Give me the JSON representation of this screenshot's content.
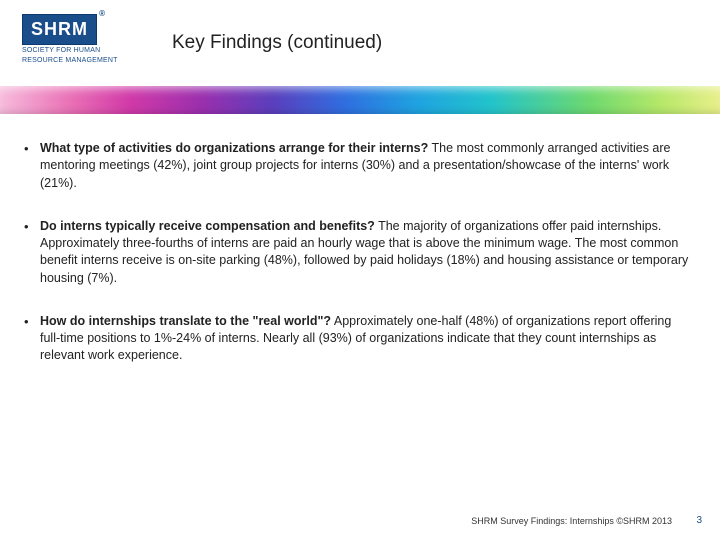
{
  "logo": {
    "mark": "SHRM",
    "registered": "®",
    "subline1": "SOCIETY FOR HUMAN",
    "subline2": "RESOURCE MANAGEMENT"
  },
  "title": "Key Findings (continued)",
  "bullets": [
    {
      "question": "What type of activities do organizations arrange for their interns?",
      "answer": "The most commonly arranged activities are mentoring meetings (42%), joint group projects for interns (30%) and a presentation/showcase of the interns' work (21%)."
    },
    {
      "question": "Do interns typically receive compensation and benefits?",
      "answer": "The majority of organizations offer paid internships. Approximately three-fourths of interns are paid an hourly wage that is above the minimum wage. The most common benefit interns receive is on-site parking (48%), followed by paid holidays (18%) and housing assistance or temporary housing (7%)."
    },
    {
      "question": "How do internships translate to the \"real world\"?",
      "answer": "Approximately one-half (48%) of organizations report offering full-time positions to 1%-24% of interns. Nearly all (93%) of organizations indicate that they count internships as relevant work experience."
    }
  ],
  "footer": "SHRM Survey Findings: Internships ©SHRM 2013",
  "page_number": "3",
  "colors": {
    "brand_blue": "#1a4e8a"
  }
}
